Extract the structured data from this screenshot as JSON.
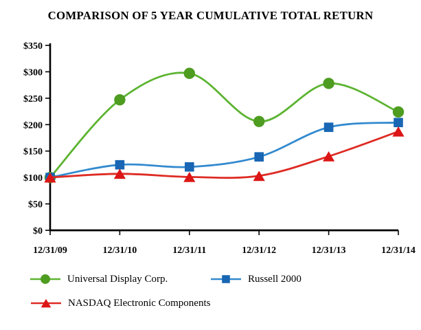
{
  "chart_data": {
    "type": "line",
    "title": "COMPARISON OF 5 YEAR CUMULATIVE TOTAL RETURN",
    "categories": [
      "12/31/09",
      "12/31/10",
      "12/31/11",
      "12/31/12",
      "12/31/13",
      "12/31/14"
    ],
    "y_axis": {
      "min": 0,
      "max": 350,
      "step": 50,
      "tick_labels": [
        "$0",
        "$50",
        "$100",
        "$150",
        "$200",
        "$250",
        "$300",
        "$350"
      ]
    },
    "series": [
      {
        "name": "Universal Display Corp.",
        "marker": "circle",
        "line_color": "#5cb431",
        "marker_color": "#4e9c20",
        "values": [
          100,
          247,
          297,
          206,
          278,
          224
        ]
      },
      {
        "name": "Russell 2000",
        "marker": "square",
        "line_color": "#338acf",
        "marker_color": "#1866b4",
        "values": [
          100,
          124,
          120,
          139,
          195,
          204
        ]
      },
      {
        "name": "NASDAQ Electronic Components",
        "marker": "triangle",
        "line_color": "#de2b24",
        "marker_color": "#dc1616",
        "values": [
          100,
          107,
          101,
          103,
          140,
          187
        ]
      }
    ],
    "line_style": "smooth",
    "grid": false,
    "legend_position": "bottom-left"
  }
}
